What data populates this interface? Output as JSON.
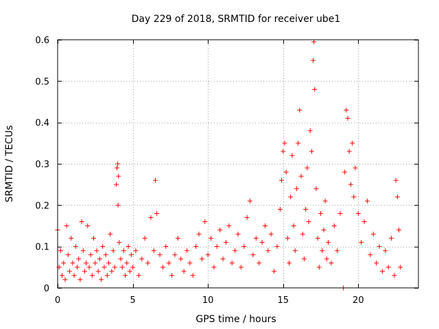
{
  "chart_data": {
    "type": "scatter",
    "title": "Day 229 of 2018, SRMTID for receiver ube1",
    "xlabel": "GPS time / hours",
    "ylabel": "SRMTID / TECUs",
    "xlim": [
      0,
      24
    ],
    "ylim": [
      0,
      0.6
    ],
    "xticks": [
      0,
      5,
      10,
      15,
      20
    ],
    "yticks": [
      0,
      0.1,
      0.2,
      0.3,
      0.4,
      0.5,
      0.6
    ],
    "xtick_labels": [
      "0",
      "5",
      "10",
      "15",
      "20"
    ],
    "ytick_labels": [
      "0",
      "0.1",
      "0.2",
      "0.3",
      "0.4",
      "0.5",
      "0.6"
    ],
    "grid": true,
    "marker": "+",
    "marker_color": "#ff0000",
    "series": [
      {
        "name": "SRMTID",
        "points": [
          [
            0.0,
            0.14
          ],
          [
            0.1,
            0.05
          ],
          [
            0.2,
            0.09
          ],
          [
            0.3,
            0.03
          ],
          [
            0.4,
            0.06
          ],
          [
            0.5,
            0.02
          ],
          [
            0.6,
            0.15
          ],
          [
            0.7,
            0.08
          ],
          [
            0.8,
            0.04
          ],
          [
            0.9,
            0.12
          ],
          [
            1.0,
            0.06
          ],
          [
            1.1,
            0.03
          ],
          [
            1.2,
            0.1
          ],
          [
            1.3,
            0.05
          ],
          [
            1.4,
            0.07
          ],
          [
            1.5,
            0.02
          ],
          [
            1.6,
            0.16
          ],
          [
            1.7,
            0.09
          ],
          [
            1.8,
            0.04
          ],
          [
            1.9,
            0.06
          ],
          [
            2.0,
            0.15
          ],
          [
            2.1,
            0.05
          ],
          [
            2.2,
            0.08
          ],
          [
            2.3,
            0.03
          ],
          [
            2.4,
            0.12
          ],
          [
            2.5,
            0.06
          ],
          [
            2.6,
            0.09
          ],
          [
            2.7,
            0.04
          ],
          [
            2.8,
            0.07
          ],
          [
            2.9,
            0.02
          ],
          [
            3.0,
            0.1
          ],
          [
            3.1,
            0.05
          ],
          [
            3.2,
            0.08
          ],
          [
            3.3,
            0.03
          ],
          [
            3.4,
            0.06
          ],
          [
            3.5,
            0.13
          ],
          [
            3.6,
            0.04
          ],
          [
            3.7,
            0.09
          ],
          [
            3.8,
            0.05
          ],
          [
            3.9,
            0.25
          ],
          [
            3.95,
            0.29
          ],
          [
            4.0,
            0.3
          ],
          [
            4.02,
            0.2
          ],
          [
            4.05,
            0.27
          ],
          [
            4.1,
            0.11
          ],
          [
            4.2,
            0.07
          ],
          [
            4.3,
            0.05
          ],
          [
            4.4,
            0.09
          ],
          [
            4.5,
            0.03
          ],
          [
            4.6,
            0.06
          ],
          [
            4.7,
            0.1
          ],
          [
            4.8,
            0.04
          ],
          [
            4.9,
            0.08
          ],
          [
            5.0,
            0.05
          ],
          [
            5.2,
            0.09
          ],
          [
            5.4,
            0.03
          ],
          [
            5.6,
            0.07
          ],
          [
            5.8,
            0.12
          ],
          [
            6.0,
            0.06
          ],
          [
            6.2,
            0.17
          ],
          [
            6.4,
            0.09
          ],
          [
            6.5,
            0.26
          ],
          [
            6.6,
            0.18
          ],
          [
            6.8,
            0.08
          ],
          [
            7.0,
            0.05
          ],
          [
            7.2,
            0.1
          ],
          [
            7.4,
            0.06
          ],
          [
            7.6,
            0.03
          ],
          [
            7.8,
            0.08
          ],
          [
            8.0,
            0.12
          ],
          [
            8.2,
            0.07
          ],
          [
            8.4,
            0.04
          ],
          [
            8.6,
            0.09
          ],
          [
            8.8,
            0.06
          ],
          [
            9.0,
            0.03
          ],
          [
            9.2,
            0.1
          ],
          [
            9.4,
            0.13
          ],
          [
            9.6,
            0.07
          ],
          [
            9.8,
            0.16
          ],
          [
            10.0,
            0.08
          ],
          [
            10.2,
            0.12
          ],
          [
            10.4,
            0.05
          ],
          [
            10.6,
            0.1
          ],
          [
            10.8,
            0.14
          ],
          [
            11.0,
            0.07
          ],
          [
            11.2,
            0.11
          ],
          [
            11.4,
            0.15
          ],
          [
            11.6,
            0.06
          ],
          [
            11.8,
            0.09
          ],
          [
            12.0,
            0.13
          ],
          [
            12.2,
            0.05
          ],
          [
            12.4,
            0.1
          ],
          [
            12.6,
            0.17
          ],
          [
            12.8,
            0.21
          ],
          [
            13.0,
            0.08
          ],
          [
            13.2,
            0.12
          ],
          [
            13.4,
            0.06
          ],
          [
            13.6,
            0.11
          ],
          [
            13.8,
            0.15
          ],
          [
            14.0,
            0.09
          ],
          [
            14.2,
            0.13
          ],
          [
            14.4,
            0.04
          ],
          [
            14.6,
            0.1
          ],
          [
            14.8,
            0.19
          ],
          [
            14.9,
            0.26
          ],
          [
            15.0,
            0.33
          ],
          [
            15.1,
            0.35
          ],
          [
            15.2,
            0.28
          ],
          [
            15.3,
            0.12
          ],
          [
            15.4,
            0.06
          ],
          [
            15.5,
            0.22
          ],
          [
            15.6,
            0.32
          ],
          [
            15.7,
            0.15
          ],
          [
            15.8,
            0.09
          ],
          [
            15.9,
            0.24
          ],
          [
            16.0,
            0.35
          ],
          [
            16.1,
            0.43
          ],
          [
            16.2,
            0.27
          ],
          [
            16.3,
            0.13
          ],
          [
            16.4,
            0.07
          ],
          [
            16.5,
            0.19
          ],
          [
            16.6,
            0.29
          ],
          [
            16.7,
            0.16
          ],
          [
            16.8,
            0.38
          ],
          [
            16.9,
            0.33
          ],
          [
            17.0,
            0.55
          ],
          [
            17.05,
            0.595
          ],
          [
            17.1,
            0.48
          ],
          [
            17.2,
            0.24
          ],
          [
            17.3,
            0.12
          ],
          [
            17.4,
            0.05
          ],
          [
            17.5,
            0.18
          ],
          [
            17.6,
            0.09
          ],
          [
            17.7,
            0.14
          ],
          [
            17.8,
            0.21
          ],
          [
            17.9,
            0.07
          ],
          [
            18.0,
            0.11
          ],
          [
            18.2,
            0.06
          ],
          [
            18.4,
            0.15
          ],
          [
            18.6,
            0.09
          ],
          [
            18.8,
            0.18
          ],
          [
            19.0,
            0.0
          ],
          [
            19.1,
            0.28
          ],
          [
            19.2,
            0.43
          ],
          [
            19.3,
            0.41
          ],
          [
            19.4,
            0.33
          ],
          [
            19.5,
            0.25
          ],
          [
            19.6,
            0.35
          ],
          [
            19.7,
            0.22
          ],
          [
            19.8,
            0.29
          ],
          [
            20.0,
            0.18
          ],
          [
            20.2,
            0.11
          ],
          [
            20.4,
            0.16
          ],
          [
            20.6,
            0.21
          ],
          [
            20.8,
            0.08
          ],
          [
            21.0,
            0.13
          ],
          [
            21.2,
            0.06
          ],
          [
            21.4,
            0.1
          ],
          [
            21.6,
            0.04
          ],
          [
            21.8,
            0.09
          ],
          [
            22.0,
            0.05
          ],
          [
            22.2,
            0.12
          ],
          [
            22.4,
            0.03
          ],
          [
            22.5,
            0.26
          ],
          [
            22.6,
            0.22
          ],
          [
            22.7,
            0.14
          ],
          [
            22.8,
            0.05
          ]
        ]
      }
    ]
  }
}
